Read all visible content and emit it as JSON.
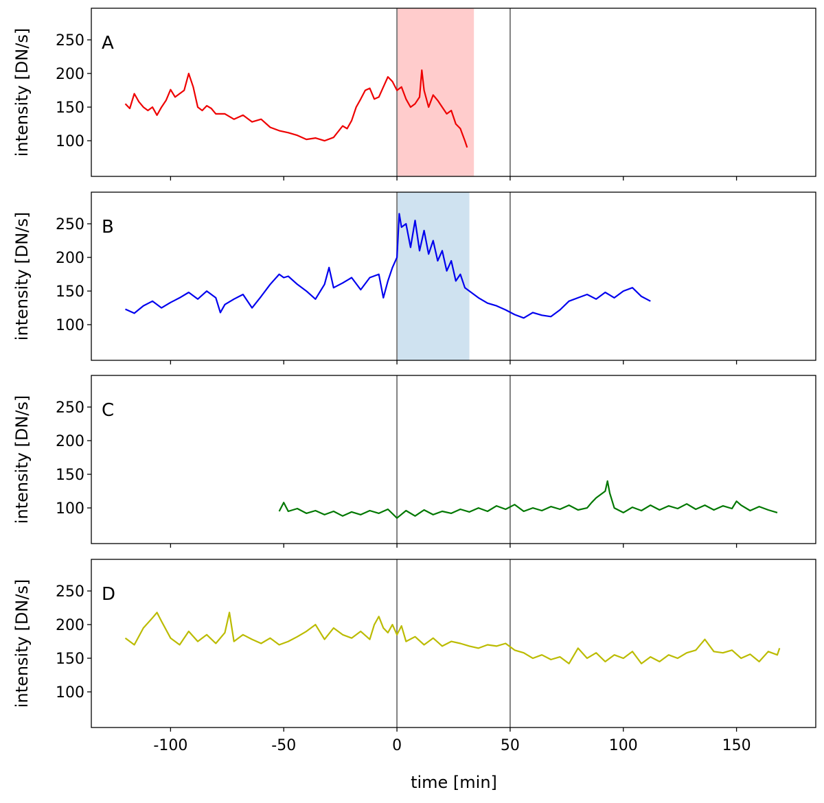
{
  "chart_data": {
    "type": "line",
    "xlabel": "time [min]",
    "ylabel": "intensity [DN/s]",
    "xlim": [
      -135,
      185
    ],
    "ylim": [
      47,
      297
    ],
    "xticks": [
      -100,
      -50,
      0,
      50,
      100,
      150
    ],
    "xtick_labels": [
      "-100",
      "-50",
      "0",
      "50",
      "100",
      "150"
    ],
    "yticks": [
      100,
      150,
      200,
      250
    ],
    "ytick_labels": [
      "100",
      "150",
      "200",
      "250"
    ],
    "vlines": [
      0,
      50
    ],
    "vline_color": "#808080",
    "grid": false,
    "panels": [
      {
        "label": "A",
        "color": "#ee0000",
        "shade": {
          "from": 0,
          "to": 34,
          "color": "#ffcccc"
        },
        "x": [
          -120,
          -118,
          -116,
          -114,
          -112,
          -110,
          -108,
          -106,
          -104,
          -102,
          -100,
          -98,
          -96,
          -94,
          -92,
          -90,
          -88,
          -86,
          -84,
          -82,
          -80,
          -76,
          -72,
          -68,
          -64,
          -60,
          -56,
          -52,
          -48,
          -44,
          -40,
          -36,
          -32,
          -28,
          -24,
          -22,
          -20,
          -18,
          -16,
          -14,
          -12,
          -10,
          -8,
          -6,
          -4,
          -2,
          0,
          2,
          4,
          6,
          8,
          10,
          11,
          12,
          14,
          16,
          18,
          20,
          22,
          24,
          26,
          28,
          30,
          31
        ],
        "y": [
          155,
          148,
          170,
          158,
          150,
          145,
          150,
          138,
          150,
          160,
          176,
          165,
          170,
          175,
          200,
          180,
          150,
          145,
          152,
          148,
          140,
          140,
          132,
          138,
          128,
          132,
          120,
          115,
          112,
          108,
          102,
          104,
          100,
          105,
          122,
          118,
          130,
          150,
          162,
          175,
          178,
          162,
          165,
          180,
          195,
          188,
          175,
          180,
          162,
          150,
          155,
          165,
          205,
          175,
          150,
          168,
          160,
          150,
          140,
          145,
          125,
          118,
          100,
          90
        ]
      },
      {
        "label": "B",
        "color": "#0000ee",
        "shade": {
          "from": 0,
          "to": 32,
          "color": "#cfe2f0"
        },
        "x": [
          -120,
          -116,
          -112,
          -108,
          -104,
          -100,
          -96,
          -92,
          -88,
          -84,
          -80,
          -78,
          -76,
          -72,
          -68,
          -64,
          -60,
          -56,
          -52,
          -50,
          -48,
          -44,
          -40,
          -36,
          -32,
          -30,
          -28,
          -24,
          -20,
          -16,
          -12,
          -8,
          -6,
          -4,
          -2,
          0,
          1,
          2,
          4,
          6,
          8,
          10,
          12,
          14,
          16,
          18,
          20,
          22,
          24,
          26,
          28,
          30,
          32,
          34,
          36,
          40,
          44,
          48,
          52,
          56,
          60,
          64,
          68,
          72,
          76,
          80,
          84,
          88,
          92,
          96,
          100,
          104,
          108,
          112
        ],
        "y": [
          123,
          117,
          128,
          135,
          125,
          133,
          140,
          148,
          138,
          150,
          140,
          118,
          130,
          138,
          145,
          125,
          142,
          160,
          175,
          170,
          172,
          160,
          150,
          138,
          160,
          185,
          155,
          162,
          170,
          152,
          170,
          175,
          140,
          165,
          185,
          200,
          265,
          245,
          250,
          215,
          255,
          210,
          240,
          205,
          225,
          195,
          210,
          180,
          195,
          165,
          175,
          155,
          150,
          145,
          140,
          132,
          128,
          122,
          115,
          110,
          118,
          114,
          112,
          122,
          135,
          140,
          145,
          138,
          148,
          140,
          150,
          155,
          142,
          135
        ]
      },
      {
        "label": "C",
        "color": "#007700",
        "shade": null,
        "x": [
          -52,
          -50,
          -48,
          -44,
          -40,
          -36,
          -32,
          -28,
          -24,
          -20,
          -16,
          -12,
          -8,
          -4,
          0,
          4,
          8,
          12,
          16,
          20,
          24,
          28,
          32,
          36,
          40,
          44,
          48,
          52,
          56,
          60,
          64,
          68,
          72,
          76,
          80,
          84,
          86,
          88,
          90,
          92,
          93,
          94,
          96,
          100,
          104,
          108,
          112,
          116,
          120,
          124,
          128,
          132,
          136,
          140,
          144,
          148,
          150,
          152,
          156,
          160,
          164,
          168
        ],
        "y": [
          95,
          108,
          95,
          99,
          92,
          96,
          90,
          95,
          88,
          94,
          90,
          96,
          92,
          98,
          85,
          96,
          88,
          97,
          90,
          95,
          92,
          98,
          94,
          100,
          95,
          103,
          98,
          105,
          95,
          100,
          96,
          102,
          98,
          104,
          97,
          100,
          108,
          115,
          120,
          125,
          140,
          122,
          100,
          93,
          101,
          96,
          104,
          97,
          103,
          99,
          106,
          98,
          104,
          97,
          103,
          99,
          110,
          104,
          96,
          102,
          97,
          93
        ]
      },
      {
        "label": "D",
        "color": "#bbbb00",
        "shade": null,
        "x": [
          -120,
          -116,
          -112,
          -108,
          -106,
          -104,
          -100,
          -96,
          -92,
          -88,
          -84,
          -80,
          -76,
          -74,
          -72,
          -68,
          -64,
          -60,
          -56,
          -52,
          -48,
          -44,
          -40,
          -36,
          -32,
          -28,
          -24,
          -20,
          -16,
          -12,
          -10,
          -8,
          -6,
          -4,
          -2,
          0,
          2,
          4,
          8,
          12,
          16,
          20,
          24,
          28,
          32,
          36,
          40,
          44,
          48,
          52,
          56,
          60,
          64,
          68,
          72,
          76,
          80,
          84,
          88,
          92,
          96,
          100,
          104,
          108,
          112,
          116,
          120,
          124,
          128,
          132,
          136,
          140,
          144,
          148,
          152,
          156,
          160,
          164,
          168,
          169
        ],
        "y": [
          180,
          170,
          195,
          210,
          218,
          205,
          180,
          170,
          190,
          175,
          185,
          172,
          188,
          218,
          175,
          185,
          178,
          172,
          180,
          170,
          175,
          182,
          190,
          200,
          178,
          195,
          185,
          180,
          190,
          178,
          200,
          212,
          195,
          188,
          200,
          185,
          198,
          175,
          182,
          170,
          180,
          168,
          175,
          172,
          168,
          165,
          170,
          168,
          172,
          162,
          158,
          150,
          155,
          148,
          152,
          142,
          165,
          150,
          158,
          145,
          155,
          150,
          160,
          142,
          152,
          145,
          155,
          150,
          158,
          162,
          178,
          160,
          158,
          162,
          150,
          156,
          145,
          160,
          155,
          165
        ]
      }
    ]
  }
}
